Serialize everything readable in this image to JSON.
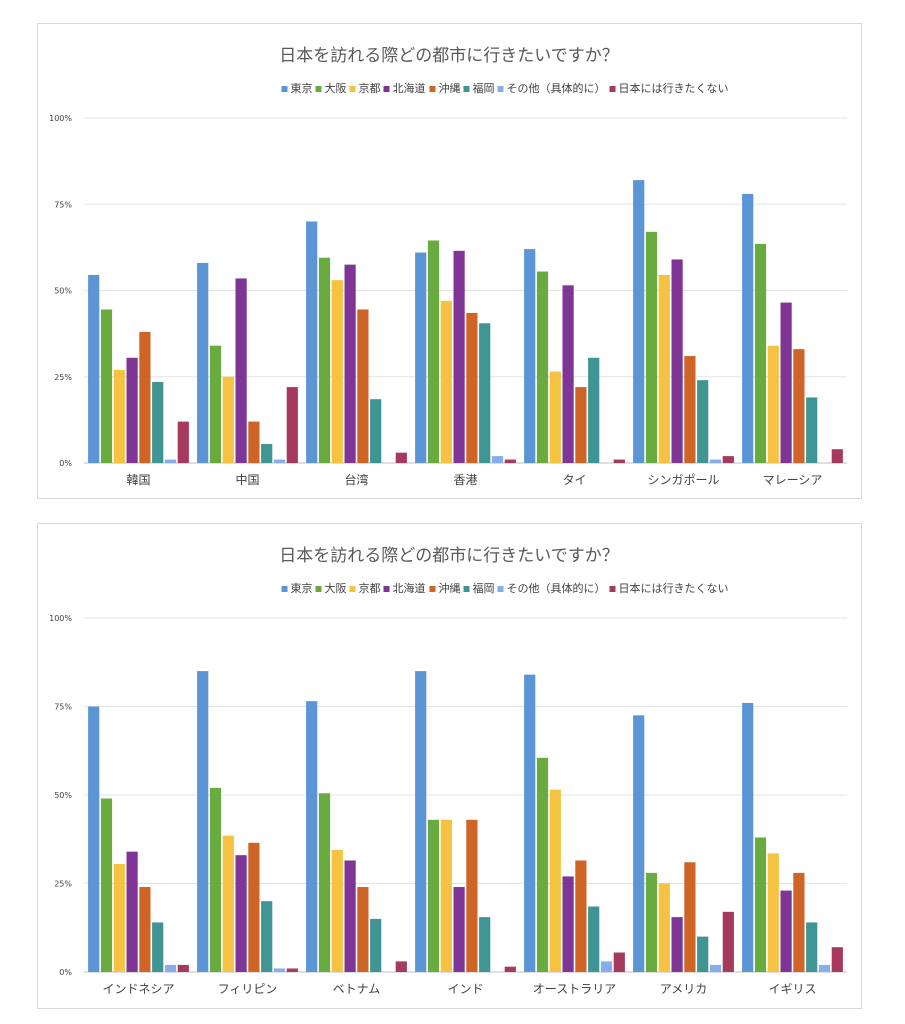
{
  "colors": [
    "#5b95d6",
    "#6aab3f",
    "#f5c242",
    "#7f3596",
    "#cf6427",
    "#3e9594",
    "#86aeed",
    "#a53a5d"
  ],
  "chart_data": [
    {
      "type": "bar",
      "title": "日本を訪れる際どの都市に行きたいですか？",
      "ylim": [
        0,
        100
      ],
      "yticks": [
        "0%",
        "25%",
        "50%",
        "75%",
        "100%"
      ],
      "legend_position": "top",
      "grid": true,
      "categories": [
        "韓国",
        "中国",
        "台湾",
        "香港",
        "タイ",
        "シンガポール",
        "マレーシア"
      ],
      "series": [
        {
          "name": "東京",
          "values": [
            54.5,
            58,
            70,
            61,
            62,
            82,
            78
          ]
        },
        {
          "name": "大阪",
          "values": [
            44.5,
            34,
            59.5,
            64.5,
            55.5,
            67,
            63.5
          ]
        },
        {
          "name": "京都",
          "values": [
            27,
            25,
            53,
            47,
            26.5,
            54.5,
            34
          ]
        },
        {
          "name": "北海道",
          "values": [
            30.5,
            53.5,
            57.5,
            61.5,
            51.5,
            59,
            46.5
          ]
        },
        {
          "name": "沖縄",
          "values": [
            38,
            12,
            44.5,
            43.5,
            22,
            31,
            33
          ]
        },
        {
          "name": "福岡",
          "values": [
            23.5,
            5.5,
            18.5,
            40.5,
            30.5,
            24,
            19
          ]
        },
        {
          "name": "その他（具体的に）",
          "values": [
            1,
            1,
            0,
            2,
            0,
            1,
            0
          ]
        },
        {
          "name": "日本には行きたくない",
          "values": [
            12,
            22,
            3,
            1,
            1,
            2,
            4
          ]
        }
      ]
    },
    {
      "type": "bar",
      "title": "日本を訪れる際どの都市に行きたいですか？",
      "ylim": [
        0,
        100
      ],
      "yticks": [
        "0%",
        "25%",
        "50%",
        "75%",
        "100%"
      ],
      "legend_position": "top",
      "grid": true,
      "categories": [
        "インドネシア",
        "フィリピン",
        "ベトナム",
        "インド",
        "オーストラリア",
        "アメリカ",
        "イギリス"
      ],
      "series": [
        {
          "name": "東京",
          "values": [
            75,
            85,
            76.5,
            85,
            84,
            72.5,
            76
          ]
        },
        {
          "name": "大阪",
          "values": [
            49,
            52,
            50.5,
            43,
            60.5,
            28,
            38
          ]
        },
        {
          "name": "京都",
          "values": [
            30.5,
            38.5,
            34.5,
            43,
            51.5,
            25,
            33.5
          ]
        },
        {
          "name": "北海道",
          "values": [
            34,
            33,
            31.5,
            24,
            27,
            15.5,
            23
          ]
        },
        {
          "name": "沖縄",
          "values": [
            24,
            36.5,
            24,
            43,
            31.5,
            31,
            28
          ]
        },
        {
          "name": "福岡",
          "values": [
            14,
            20,
            15,
            15.5,
            18.5,
            10,
            14
          ]
        },
        {
          "name": "その他（具体的に）",
          "values": [
            2,
            1,
            0,
            0,
            3,
            2,
            2
          ]
        },
        {
          "name": "日本には行きたくない",
          "values": [
            2,
            1,
            3,
            1.5,
            5.5,
            17,
            7
          ]
        }
      ]
    }
  ]
}
